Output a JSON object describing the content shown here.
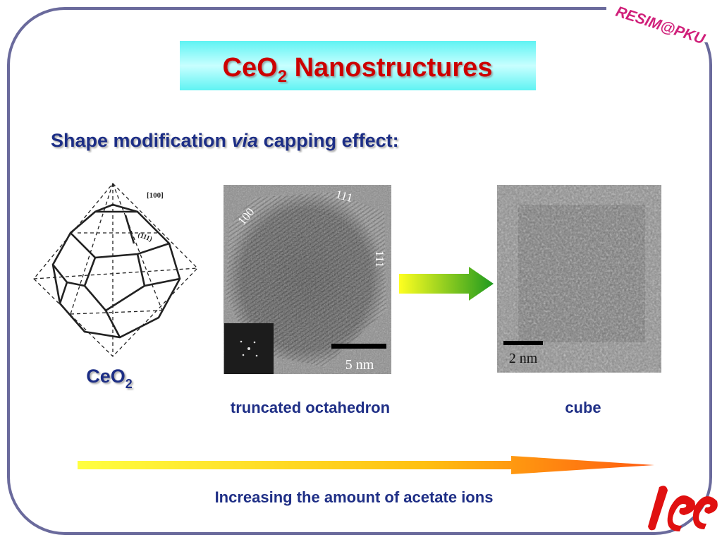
{
  "logo": "RESIM@PKU",
  "title": {
    "formula": "CeO",
    "subscript": "2",
    "rest": " Nanostructures"
  },
  "subtitle": {
    "before": "Shape modification ",
    "italic": "via",
    "after": " capping effect:"
  },
  "diagram": {
    "label_100": "[100]",
    "label_111": "(111)",
    "caption": {
      "formula": "CeO",
      "subscript": "2"
    }
  },
  "image1": {
    "facet_100": "100",
    "facet_111_top": "111",
    "facet_111_right": "111",
    "scale": "5 nm",
    "caption": "truncated octahedron"
  },
  "image2": {
    "scale": "2 nm",
    "caption": "cube"
  },
  "trend": "Increasing the amount of acetate ions"
}
